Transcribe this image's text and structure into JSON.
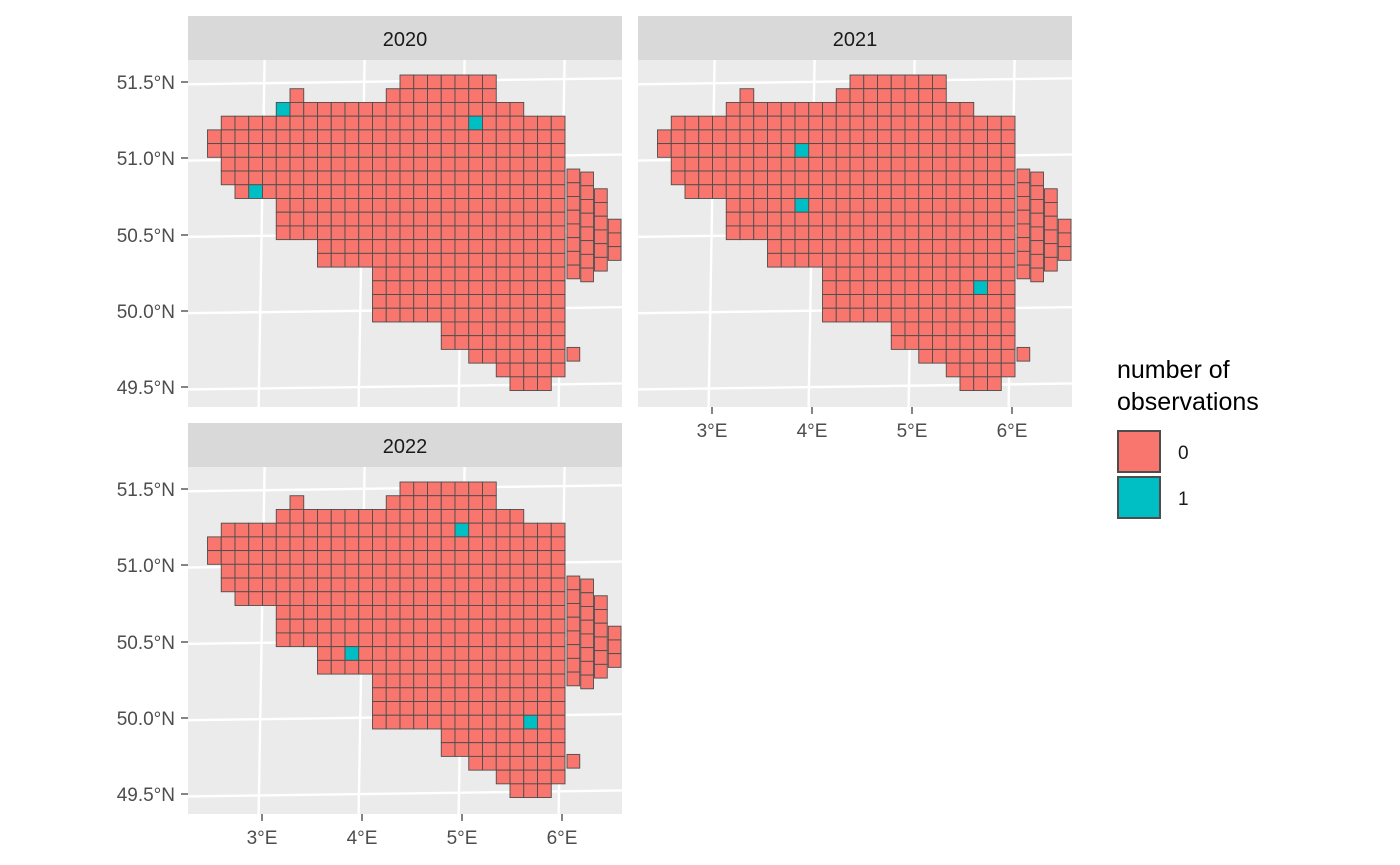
{
  "chart_data": {
    "type": "heatmap",
    "facet_by": "year",
    "panels": [
      {
        "title": "2020",
        "observed_cells": [
          [
            3.15,
            51.32
          ],
          [
            5.15,
            51.22
          ],
          [
            2.95,
            50.79
          ]
        ]
      },
      {
        "title": "2021",
        "observed_cells": [
          [
            3.9,
            51.04
          ],
          [
            3.9,
            50.69
          ],
          [
            5.7,
            50.14
          ]
        ]
      },
      {
        "title": "2022",
        "observed_cells": [
          [
            5.0,
            51.22
          ],
          [
            3.9,
            50.42
          ],
          [
            5.7,
            49.97
          ]
        ]
      }
    ],
    "x_ticks": [
      "3°E",
      "4°E",
      "5°E",
      "6°E"
    ],
    "y_ticks": [
      "51.5°N",
      "51.0°N",
      "50.5°N",
      "50.0°N",
      "49.5°N"
    ],
    "x_tick_values": [
      3,
      4,
      5,
      6
    ],
    "y_tick_values": [
      51.5,
      51.0,
      50.5,
      50.0,
      49.5
    ],
    "legend": {
      "title_lines": [
        "number of",
        "observations"
      ],
      "entries": [
        {
          "label": "0",
          "color": "#F8766D"
        },
        {
          "label": "1",
          "color": "#00BFC4"
        }
      ]
    },
    "colors": {
      "panel_bg": "#EBEBEB",
      "strip_bg": "#D9D9D9",
      "grid": "#FFFFFF",
      "cell_border": "#4D4D4D"
    }
  }
}
